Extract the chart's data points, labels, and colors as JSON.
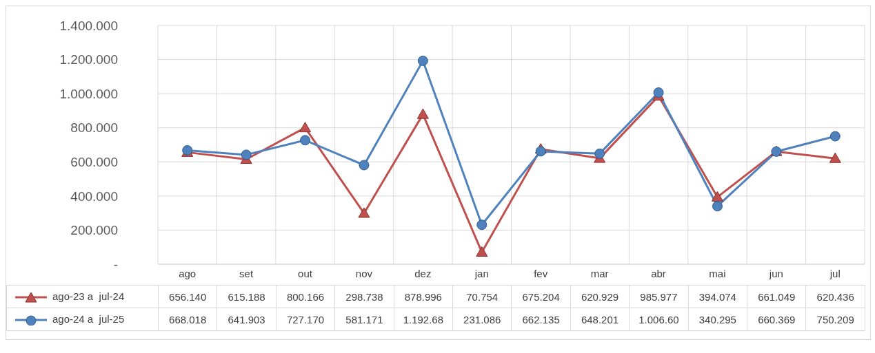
{
  "chart_data": {
    "type": "line",
    "categories": [
      "ago",
      "set",
      "out",
      "nov",
      "dez",
      "jan",
      "fev",
      "mar",
      "abr",
      "mai",
      "jun",
      "jul"
    ],
    "series": [
      {
        "name": "ago-23 a  jul-24",
        "color": "#c0504d",
        "marker": "triangle",
        "values": [
          656140,
          615188,
          800166,
          298738,
          878996,
          70754,
          675204,
          620929,
          985977,
          394074,
          661049,
          620436
        ],
        "value_labels": [
          "656.140",
          "615.188",
          "800.166",
          "298.738",
          "878.996",
          "70.754",
          "675.204",
          "620.929",
          "985.977",
          "394.074",
          "661.049",
          "620.436"
        ]
      },
      {
        "name": "ago-24 a  jul-25",
        "color": "#4f81bd",
        "marker": "circle",
        "values": [
          668018,
          641903,
          727170,
          581171,
          1192680,
          231086,
          662135,
          648201,
          1006600,
          340295,
          660369,
          750209
        ],
        "value_labels": [
          "668.018",
          "641.903",
          "727.170",
          "581.171",
          "1.192.68",
          "231.086",
          "662.135",
          "648.201",
          "1.006.60",
          "340.295",
          "660.369",
          "750.209"
        ]
      }
    ],
    "ylim": [
      0,
      1400000
    ],
    "yticks": [
      {
        "value": 0,
        "label": "-"
      },
      {
        "value": 200000,
        "label": "200.000"
      },
      {
        "value": 400000,
        "label": "400.000"
      },
      {
        "value": 600000,
        "label": "600.000"
      },
      {
        "value": 800000,
        "label": "800.000"
      },
      {
        "value": 1000000,
        "label": "1.000.000"
      },
      {
        "value": 1200000,
        "label": "1.200.000"
      },
      {
        "value": 1400000,
        "label": "1.400.000"
      }
    ],
    "grid": true,
    "legend": "bottom left"
  }
}
